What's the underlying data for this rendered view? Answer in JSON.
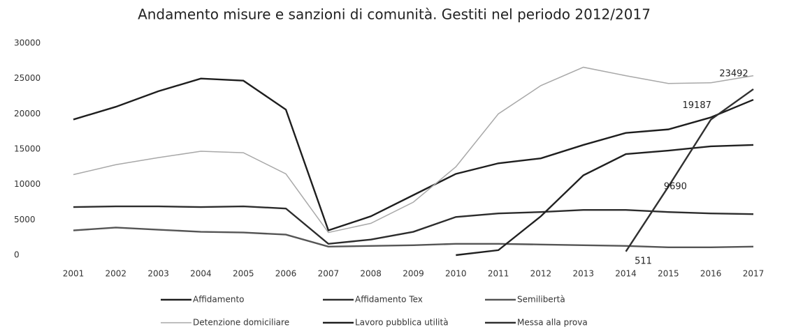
{
  "chart_data": {
    "type": "line",
    "title": "Andamento misure e sanzioni di comunità. Gestiti nel periodo 2012/2017",
    "categories": [
      "2001",
      "2002",
      "2003",
      "2004",
      "2005",
      "2006",
      "2007",
      "2008",
      "2009",
      "2010",
      "2011",
      "2012",
      "2013",
      "2014",
      "2015",
      "2016",
      "2017"
    ],
    "ylim": [
      0,
      30000
    ],
    "yticks": [
      0,
      5000,
      10000,
      15000,
      20000,
      25000,
      30000
    ],
    "grid": false,
    "series": [
      {
        "name": "Affidamento",
        "color": "#1e1e1e",
        "values": [
          19200,
          21000,
          23200,
          25000,
          24700,
          20600,
          3500,
          5500,
          8500,
          11500,
          13000,
          13700,
          15600,
          17300,
          17800,
          19500,
          22000
        ]
      },
      {
        "name": "Affidamento Tex",
        "color": "#2c2c2c",
        "values": [
          6800,
          6900,
          6900,
          6800,
          6900,
          6600,
          1600,
          2200,
          3300,
          5400,
          5900,
          6100,
          6400,
          6400,
          6100,
          5900,
          5800
        ]
      },
      {
        "name": "Semilibertà",
        "color": "#555555",
        "values": [
          3500,
          3900,
          3600,
          3300,
          3200,
          2900,
          1200,
          1300,
          1400,
          1600,
          1600,
          1500,
          1400,
          1300,
          1100,
          1100,
          1200
        ]
      },
      {
        "name": "Detenzione domiciliare",
        "color": "#a8a8a8",
        "values": [
          11400,
          12800,
          13800,
          14700,
          14500,
          11500,
          3200,
          4500,
          7500,
          12500,
          20000,
          24000,
          26600,
          25400,
          24300,
          24400,
          25400
        ]
      },
      {
        "name": "Lavoro pubblica utilità",
        "color": "#202020",
        "values": [
          null,
          null,
          null,
          null,
          null,
          null,
          null,
          null,
          null,
          0,
          700,
          5500,
          11300,
          14300,
          14800,
          15400,
          15600
        ]
      },
      {
        "name": "Messa alla prova",
        "color": "#303030",
        "values": [
          null,
          null,
          null,
          null,
          null,
          null,
          null,
          null,
          null,
          null,
          null,
          null,
          null,
          511,
          9690,
          19187,
          23492
        ],
        "labels": true
      }
    ],
    "legend": "bottom"
  }
}
